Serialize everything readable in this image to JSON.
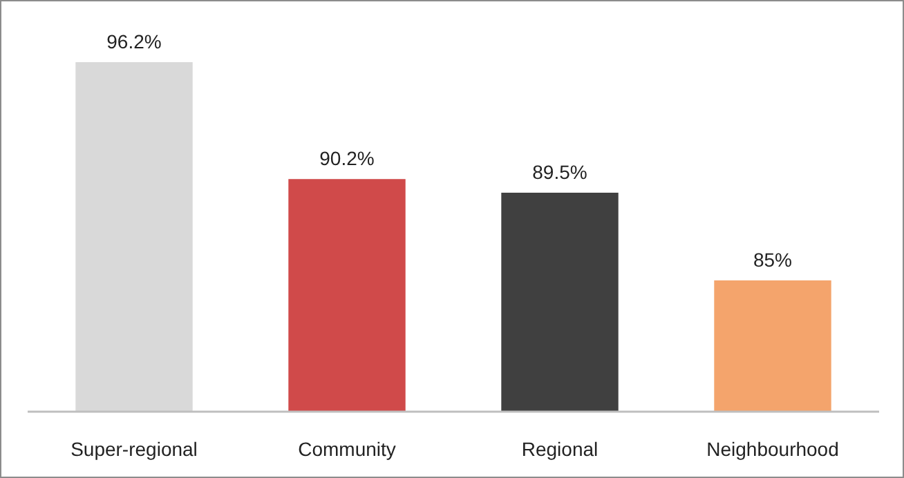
{
  "chart_data": {
    "type": "bar",
    "categories": [
      "Super-regional",
      "Community",
      "Regional",
      "Neighbourhood"
    ],
    "values": [
      96.2,
      90.2,
      89.5,
      85
    ],
    "colors": [
      "#d9d9d9",
      "#d04a4a",
      "#404040",
      "#f4a46c"
    ],
    "value_labels": [
      "96.2%",
      "90.2%",
      "89.5%",
      "85%"
    ],
    "ylim": [
      78.26,
      96.2
    ],
    "tick_labels": "x"
  }
}
